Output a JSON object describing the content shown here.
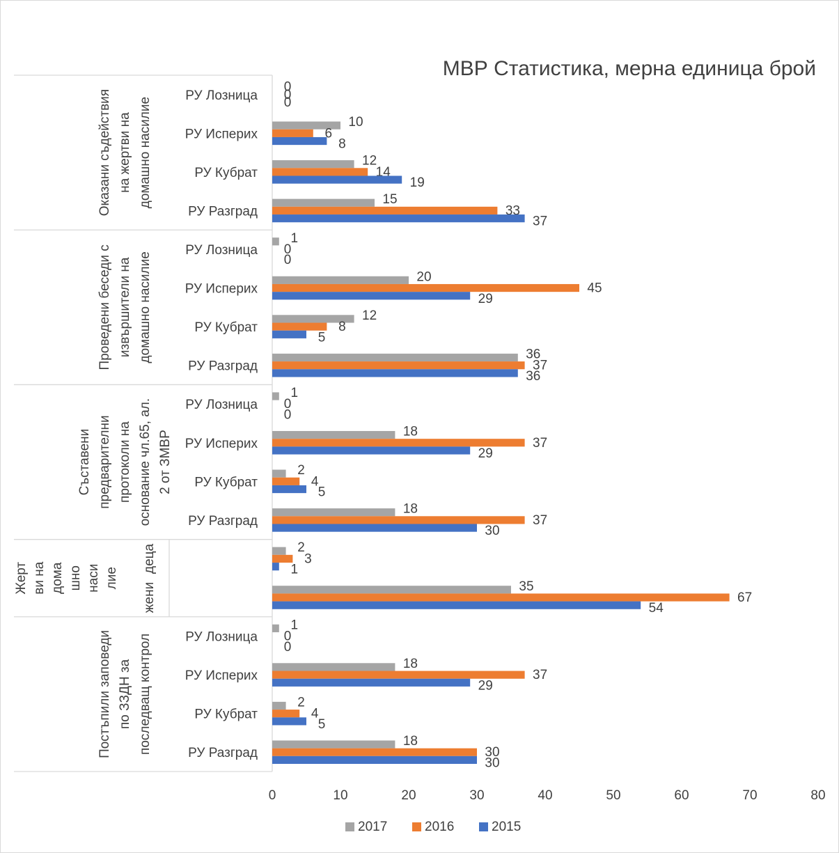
{
  "chart_data": {
    "type": "bar",
    "orientation": "horizontal",
    "title": "МВР Статистика, мерна единица брой",
    "xlim": [
      0,
      80
    ],
    "xticks": [
      0,
      10,
      20,
      30,
      40,
      50,
      60,
      70,
      80
    ],
    "grid": false,
    "legend_position": "bottom",
    "series": [
      {
        "name": "2017",
        "color": "#a5a5a5"
      },
      {
        "name": "2016",
        "color": "#ed7d31"
      },
      {
        "name": "2015",
        "color": "#4472c4"
      }
    ],
    "groups": [
      {
        "label": "Оказани съдействия на жертви на домашно насилие",
        "label_lines": [
          "Оказани съдействия",
          "на жертви на",
          "домашно насилие"
        ],
        "categories": [
          {
            "label": "РУ Лозница",
            "values": [
              0,
              0,
              0
            ]
          },
          {
            "label": "РУ Исперих",
            "values": [
              10,
              6,
              8
            ]
          },
          {
            "label": "РУ Кубрат",
            "values": [
              12,
              14,
              19
            ]
          },
          {
            "label": "РУ Разград",
            "values": [
              15,
              33,
              37
            ]
          }
        ]
      },
      {
        "label": "Проведени беседи с извършители на домашно насилие",
        "label_lines": [
          "Проведени беседи с",
          "извършители на",
          "домашно насилие"
        ],
        "categories": [
          {
            "label": "РУ Лозница",
            "values": [
              1,
              0,
              0
            ]
          },
          {
            "label": "РУ Исперих",
            "values": [
              20,
              45,
              29
            ]
          },
          {
            "label": "РУ Кубрат",
            "values": [
              12,
              8,
              5
            ]
          },
          {
            "label": "РУ Разград",
            "values": [
              36,
              37,
              36
            ]
          }
        ]
      },
      {
        "label": "Съставени предварителни протоколи на основание чл.65, ал. 2 от ЗМВР",
        "label_lines": [
          "Съставени",
          "предварителни",
          "протоколи на",
          "основание чл.65, ал.",
          "2 от ЗМВР"
        ],
        "categories": [
          {
            "label": "РУ Лозница",
            "values": [
              1,
              0,
              0
            ]
          },
          {
            "label": "РУ Исперих",
            "values": [
              18,
              37,
              29
            ]
          },
          {
            "label": "РУ Кубрат",
            "values": [
              2,
              4,
              5
            ]
          },
          {
            "label": "РУ Разград",
            "values": [
              18,
              37,
              30
            ]
          }
        ]
      },
      {
        "label": "Жертви на домашно насилие",
        "label_lines": [
          "Жерт",
          "ви на",
          "дома",
          "шно",
          "наси",
          "лие"
        ],
        "categories": [
          {
            "label": "деца",
            "label_lines": [
              "Жерт",
              "ви на",
              "дома",
              "шно",
              "наси",
              "лие",
              "деца"
            ],
            "values": [
              2,
              3,
              1
            ]
          },
          {
            "label": "жени",
            "label_lines": [
              "Жерт",
              "ви на",
              "дома",
              "шно",
              "наси",
              "лие",
              "жени"
            ],
            "values": [
              35,
              67,
              54
            ]
          }
        ]
      },
      {
        "label": "Постъпили заповеди по ЗЗДН за последващ контрол",
        "label_lines": [
          "Постъпили заповеди",
          "по ЗЗДН за",
          "последващ контрол"
        ],
        "categories": [
          {
            "label": "РУ Лозница",
            "values": [
              1,
              0,
              0
            ]
          },
          {
            "label": "РУ Исперих",
            "values": [
              18,
              37,
              29
            ]
          },
          {
            "label": "РУ Кубрат",
            "values": [
              2,
              4,
              5
            ]
          },
          {
            "label": "РУ Разград",
            "values": [
              18,
              30,
              30
            ]
          }
        ]
      }
    ]
  }
}
